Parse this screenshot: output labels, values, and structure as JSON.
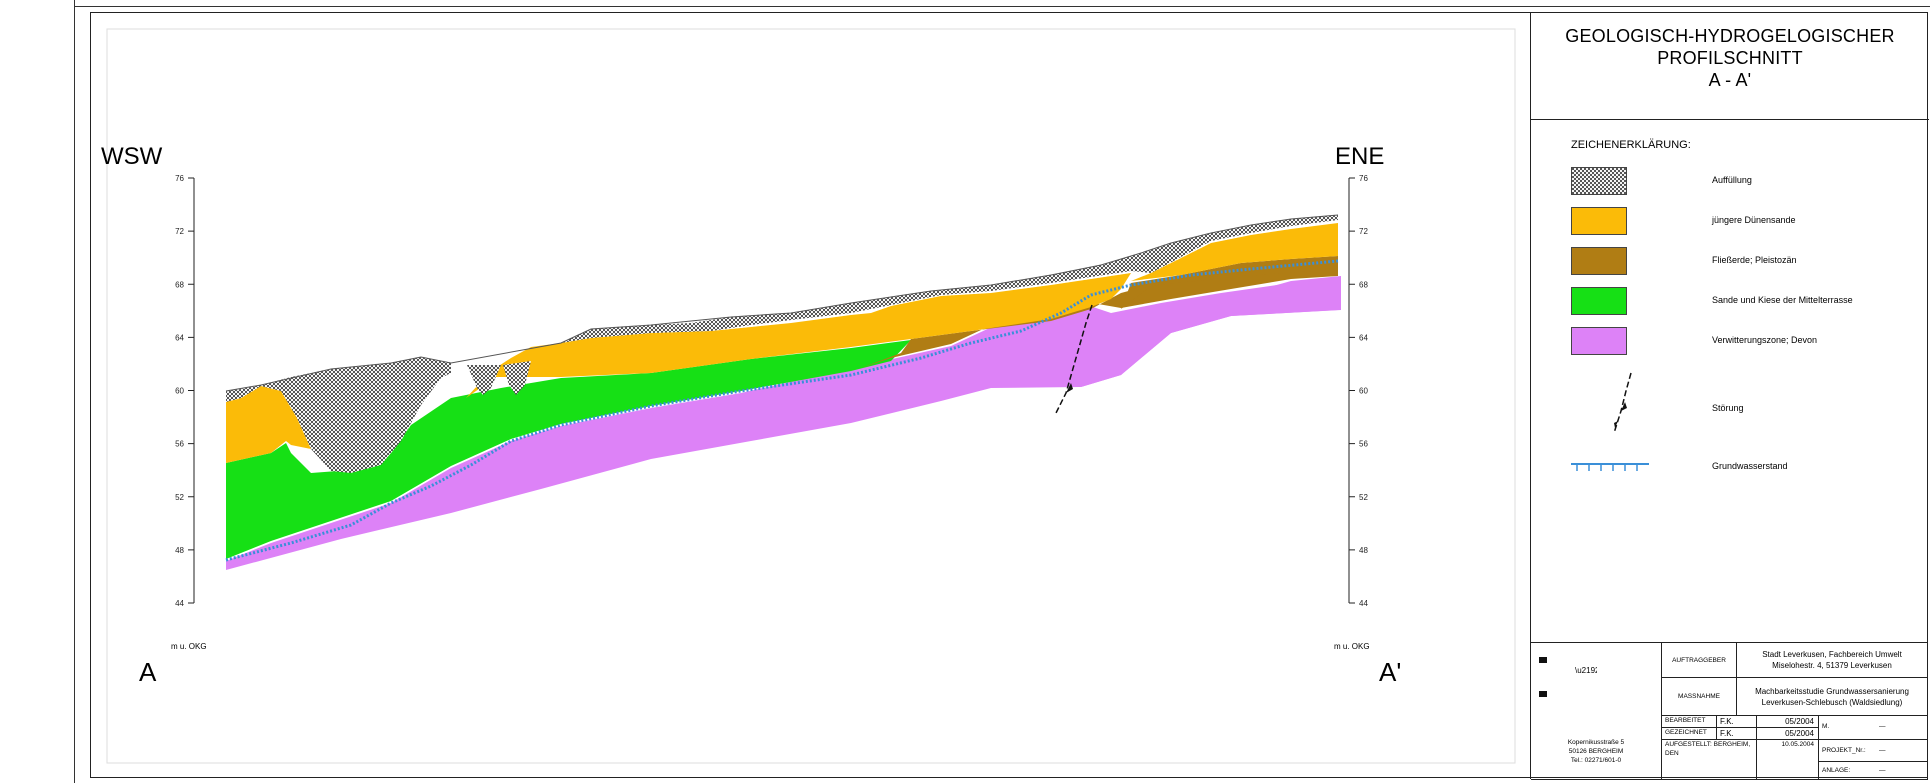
{
  "title": {
    "line1": "GEOLOGISCH-HYDROGELOGISCHER",
    "line2": "PROFILSCHNITT",
    "line3": "A - A'"
  },
  "profile": {
    "west_label": "WSW",
    "east_label": "ENE",
    "start_label": "A",
    "end_label": "A'",
    "axis_unit": "m u. OKG",
    "axis_ticks": [
      76,
      72,
      68,
      64,
      60,
      56,
      52,
      48,
      44
    ]
  },
  "legend": {
    "heading": "ZEICHENERKLÄRUNG:",
    "items": [
      {
        "label": "Auffüllung",
        "symbol": "hatch-swatch"
      },
      {
        "label": "jüngere Dünensande",
        "symbol": "fill-swatch",
        "color": "#FBBB08"
      },
      {
        "label": "Fließerde; Pleistozän",
        "symbol": "fill-swatch",
        "color": "#B07D14"
      },
      {
        "label": "Sande und Kiese der Mittelterrasse",
        "symbol": "fill-swatch",
        "color": "#16E015"
      },
      {
        "label": "Verwitterungszone; Devon",
        "symbol": "fill-swatch",
        "color": "#DD82F7"
      },
      {
        "label": "Störung",
        "symbol": "fault-icon"
      },
      {
        "label": "Grundwasserstand",
        "symbol": "groundwater-icon"
      }
    ]
  },
  "info_block": {
    "company_address": [
      "Kopernikusstraße 5",
      "50126 BERGHEIM",
      "Tel.: 02271/601-0"
    ],
    "auftraggeber_label": "AUFTRAGGEBER",
    "auftraggeber_value": [
      "Stadt Leverkusen, Fachbereich Umwelt",
      "Miselohestr. 4, 51379 Leverkusen"
    ],
    "massnahme_label": "MASSNAHME",
    "massnahme_value": [
      "Machbarkeitsstudie Grundwassersanierung",
      "Leverkusen-Schlebusch (Waldsiedlung)"
    ],
    "bearbeitet_label": "BEARBEITET",
    "bearbeitet_name": "F.K.",
    "bearbeitet_date": "05/2004",
    "gezeichnet_label": "GEZEICHNET",
    "gezeichnet_name": "F.K.",
    "gezeichnet_date": "05/2004",
    "aufgestellt_label": "AUFGESTELLT: BERGHEIM, DEN",
    "aufgestellt_date": "10.05.2004",
    "m_label": "M.",
    "m_value": "—",
    "projekt_label": "PROJEKT_Nr.:",
    "projekt_value": "—",
    "anlage_label": "ANLAGE:",
    "anlage_value": "—"
  },
  "colors": {
    "fill": "#FBBB08",
    "dune_sand": "#FBBB08",
    "solifluction": "#B07D14",
    "terrace_gravel": "#16E015",
    "devonian": "#DD82F7",
    "groundwater": "#3A8FD8"
  }
}
